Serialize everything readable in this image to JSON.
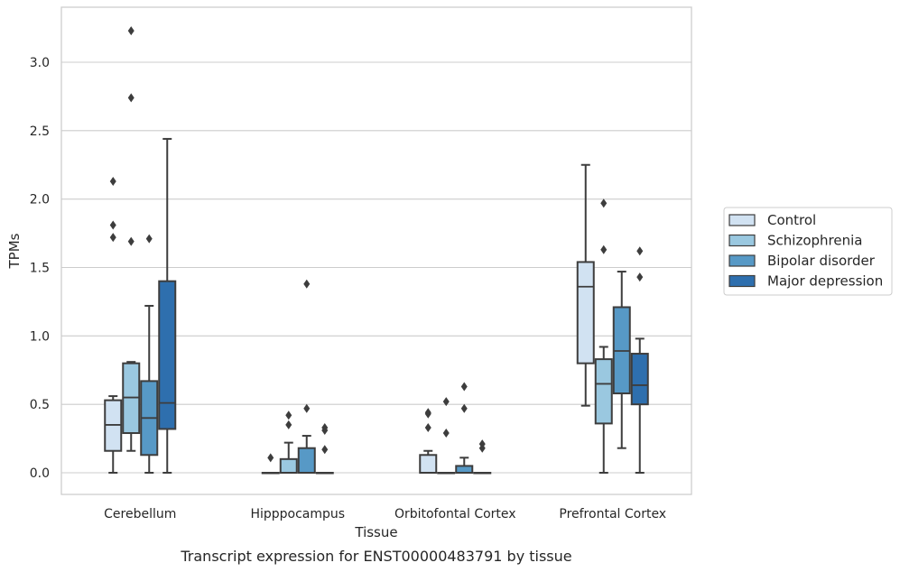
{
  "chart_data": {
    "type": "box",
    "caption": "Transcript expression for ENST00000483791 by tissue",
    "xlabel": "Tissue",
    "ylabel": "TPMs",
    "ylim": [
      -0.16,
      3.4
    ],
    "yticks": [
      "0.0",
      "0.5",
      "1.0",
      "1.5",
      "2.0",
      "2.5",
      "3.0"
    ],
    "ytick_values": [
      0,
      0.5,
      1.0,
      1.5,
      2.0,
      2.5,
      3.0
    ],
    "grid": "horizontal",
    "legend_position": "right",
    "categories": [
      "Cerebellum",
      "Hipppocampus",
      "Orbitofontal Cortex",
      "Prefrontal Cortex"
    ],
    "series": [
      {
        "name": "Control",
        "color": "#d1e2f2",
        "boxes": [
          {
            "whisker_low": 0.0,
            "q1": 0.16,
            "median": 0.35,
            "q3": 0.53,
            "whisker_high": 0.56,
            "outliers": [
              1.72,
              1.81,
              2.13
            ]
          },
          {
            "whisker_low": 0.0,
            "q1": 0.0,
            "median": 0.0,
            "q3": 0.0,
            "whisker_high": 0.0,
            "outliers": [
              0.11
            ]
          },
          {
            "whisker_low": 0.0,
            "q1": 0.0,
            "median": 0.0,
            "q3": 0.13,
            "whisker_high": 0.16,
            "outliers": [
              0.33,
              0.43,
              0.44
            ]
          },
          {
            "whisker_low": 0.49,
            "q1": 0.8,
            "median": 1.36,
            "q3": 1.54,
            "whisker_high": 2.25,
            "outliers": []
          }
        ]
      },
      {
        "name": "Schizophrenia",
        "color": "#9ac8e0",
        "boxes": [
          {
            "whisker_low": 0.16,
            "q1": 0.29,
            "median": 0.55,
            "q3": 0.8,
            "whisker_high": 0.81,
            "outliers": [
              1.69,
              2.74,
              3.23
            ]
          },
          {
            "whisker_low": 0.0,
            "q1": 0.0,
            "median": 0.0,
            "q3": 0.1,
            "whisker_high": 0.22,
            "outliers": [
              0.35,
              0.42
            ]
          },
          {
            "whisker_low": 0.0,
            "q1": 0.0,
            "median": 0.0,
            "q3": 0.0,
            "whisker_high": 0.0,
            "outliers": [
              0.29,
              0.52
            ]
          },
          {
            "whisker_low": 0.0,
            "q1": 0.36,
            "median": 0.65,
            "q3": 0.83,
            "whisker_high": 0.92,
            "outliers": [
              1.63,
              1.97
            ]
          }
        ]
      },
      {
        "name": "Bipolar disorder",
        "color": "#5799c6",
        "boxes": [
          {
            "whisker_low": 0.0,
            "q1": 0.13,
            "median": 0.4,
            "q3": 0.67,
            "whisker_high": 1.22,
            "outliers": [
              1.71
            ]
          },
          {
            "whisker_low": 0.0,
            "q1": 0.0,
            "median": 0.0,
            "q3": 0.18,
            "whisker_high": 0.27,
            "outliers": [
              0.47,
              1.38
            ]
          },
          {
            "whisker_low": 0.0,
            "q1": 0.0,
            "median": 0.0,
            "q3": 0.05,
            "whisker_high": 0.11,
            "outliers": [
              0.47,
              0.63
            ]
          },
          {
            "whisker_low": 0.18,
            "q1": 0.58,
            "median": 0.89,
            "q3": 1.21,
            "whisker_high": 1.47,
            "outliers": []
          }
        ]
      },
      {
        "name": "Major depression",
        "color": "#2e6fae",
        "boxes": [
          {
            "whisker_low": 0.0,
            "q1": 0.32,
            "median": 0.51,
            "q3": 1.4,
            "whisker_high": 2.44,
            "outliers": []
          },
          {
            "whisker_low": 0.0,
            "q1": 0.0,
            "median": 0.0,
            "q3": 0.0,
            "whisker_high": 0.0,
            "outliers": [
              0.17,
              0.31,
              0.33
            ]
          },
          {
            "whisker_low": 0.0,
            "q1": 0.0,
            "median": 0.0,
            "q3": 0.0,
            "whisker_high": 0.0,
            "outliers": [
              0.18,
              0.21
            ]
          },
          {
            "whisker_low": 0.0,
            "q1": 0.5,
            "median": 0.64,
            "q3": 0.87,
            "whisker_high": 0.98,
            "outliers": [
              1.43,
              1.62
            ]
          }
        ]
      }
    ]
  }
}
